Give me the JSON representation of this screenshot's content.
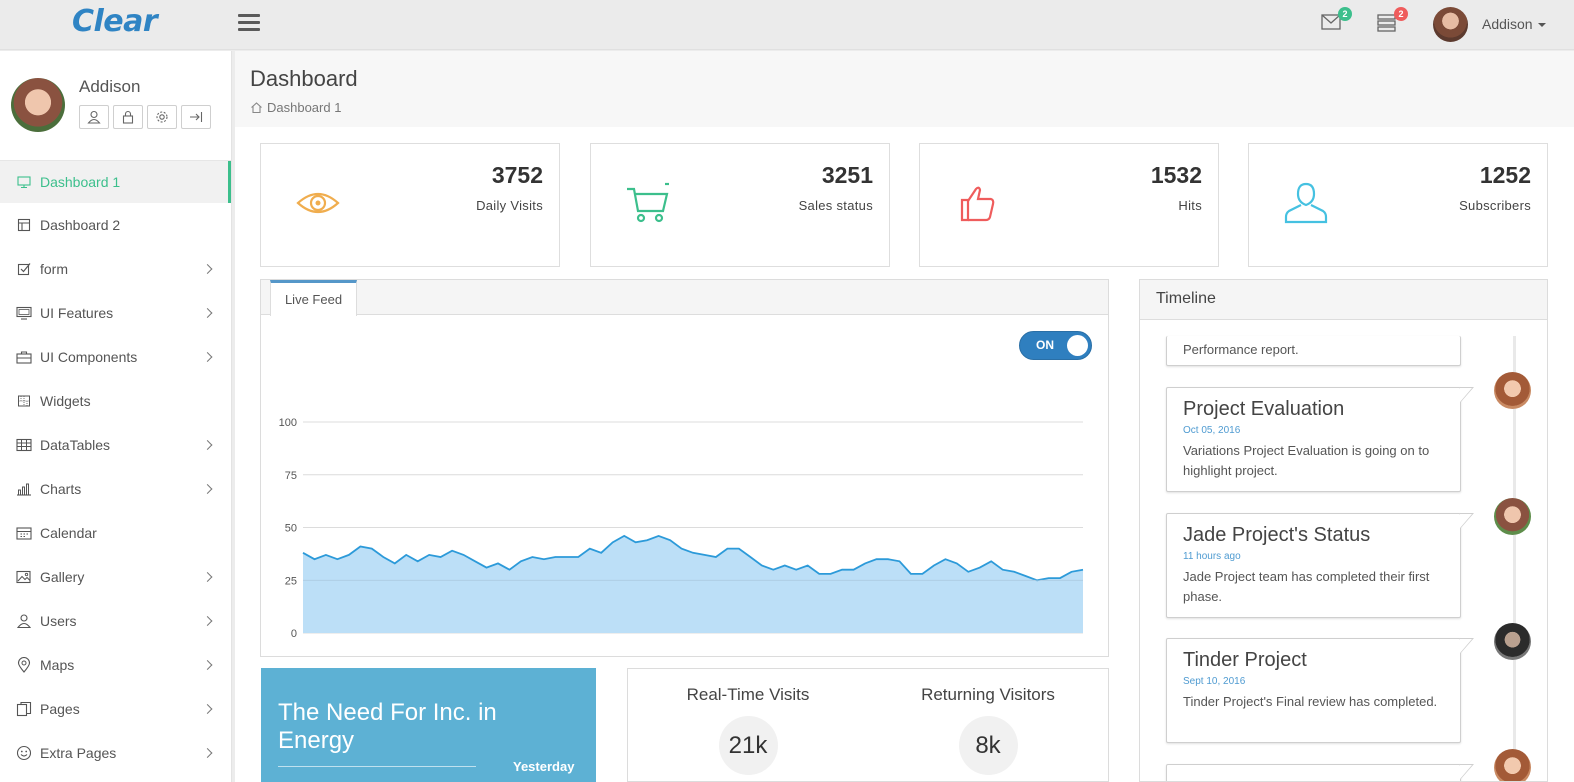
{
  "app": {
    "logo": "Clear"
  },
  "topbar": {
    "mail_badge": "2",
    "tasks_badge": "2",
    "user_name": "Addison"
  },
  "profile": {
    "name": "Addison"
  },
  "sidebar": {
    "items": [
      {
        "label": "Dashboard 1",
        "icon": "monitor-icon",
        "active": true,
        "has_children": false
      },
      {
        "label": "Dashboard 2",
        "icon": "layout-icon",
        "active": false,
        "has_children": false
      },
      {
        "label": "form",
        "icon": "checkbox-icon",
        "active": false,
        "has_children": true
      },
      {
        "label": "UI Features",
        "icon": "desktop-icon",
        "active": false,
        "has_children": true
      },
      {
        "label": "UI Components",
        "icon": "briefcase-icon",
        "active": false,
        "has_children": true
      },
      {
        "label": "Widgets",
        "icon": "grid-icon",
        "active": false,
        "has_children": false
      },
      {
        "label": "DataTables",
        "icon": "table-icon",
        "active": false,
        "has_children": true
      },
      {
        "label": "Charts",
        "icon": "bar-chart-icon",
        "active": false,
        "has_children": true
      },
      {
        "label": "Calendar",
        "icon": "calendar-icon",
        "active": false,
        "has_children": false
      },
      {
        "label": "Gallery",
        "icon": "image-icon",
        "active": false,
        "has_children": true
      },
      {
        "label": "Users",
        "icon": "user-icon",
        "active": false,
        "has_children": true
      },
      {
        "label": "Maps",
        "icon": "map-pin-icon",
        "active": false,
        "has_children": true
      },
      {
        "label": "Pages",
        "icon": "pages-icon",
        "active": false,
        "has_children": true
      },
      {
        "label": "Extra Pages",
        "icon": "smile-icon",
        "active": false,
        "has_children": true
      }
    ]
  },
  "header": {
    "title": "Dashboard",
    "breadcrumb": "Dashboard 1"
  },
  "stats": [
    {
      "value": "3752",
      "label": "Daily Visits",
      "icon": "eye-icon",
      "color": "#f0ad4e"
    },
    {
      "value": "3251",
      "label": "Sales status",
      "icon": "cart-icon",
      "color": "#3cbf8c"
    },
    {
      "value": "1532",
      "label": "Hits",
      "icon": "thumbs-up-icon",
      "color": "#ef5c5c"
    },
    {
      "value": "1252",
      "label": "Subscribers",
      "icon": "user-outline-icon",
      "color": "#45c1e1"
    }
  ],
  "feed": {
    "tab_label": "Live Feed",
    "toggle_label": "ON"
  },
  "chart_data": {
    "type": "area",
    "title": "Live Feed",
    "xlabel": "",
    "ylabel": "",
    "ylim": [
      0,
      100
    ],
    "yticks": [
      "0",
      "25",
      "50",
      "75",
      "100"
    ],
    "grid": true,
    "values": [
      38,
      35,
      37,
      35,
      37,
      41,
      40,
      36,
      33,
      37,
      34,
      37,
      36,
      39,
      37,
      34,
      31,
      33,
      30,
      34,
      36,
      35,
      36,
      36,
      36,
      40,
      38,
      43,
      46,
      43,
      44,
      46,
      44,
      40,
      38,
      37,
      36,
      40,
      40,
      36,
      32,
      30,
      32,
      30,
      32,
      28,
      28,
      30,
      30,
      33,
      35,
      35,
      34,
      28,
      28,
      32,
      35,
      33,
      29,
      31,
      34,
      30,
      29,
      27,
      25,
      26,
      26,
      29,
      30
    ]
  },
  "timeline": {
    "title": "Timeline",
    "partial_text": "Performance report.",
    "items": [
      {
        "title": "Project Evaluation",
        "time": "Oct 05, 2016",
        "text": "Variations Project Evaluation is going on to highlight project."
      },
      {
        "title": "Jade Project's Status",
        "time": "11 hours ago",
        "text": "Jade Project team has completed their first phase."
      },
      {
        "title": "Tinder Project",
        "time": "Sept 10, 2016",
        "text": "Tinder Project's Final review has completed."
      }
    ]
  },
  "energy": {
    "title": "The Need For Inc. in Energy",
    "date": "Yesterday"
  },
  "visits": {
    "realtime_label": "Real-Time Visits",
    "realtime_value": "21k",
    "returning_label": "Returning Visitors",
    "returning_value": "8k"
  }
}
